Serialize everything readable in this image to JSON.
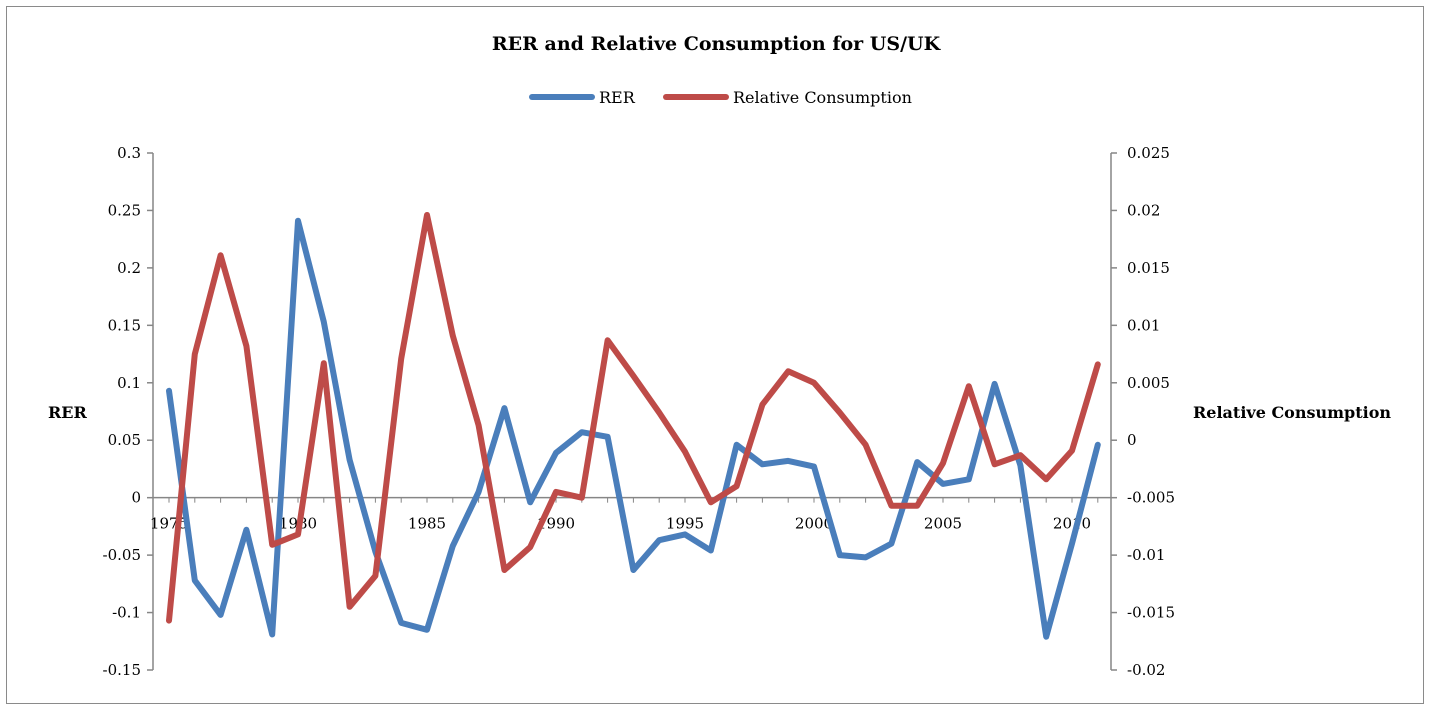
{
  "chart_data": {
    "type": "line",
    "title": "RER and Relative Consumption for US/UK",
    "ylabel_left": "RER",
    "ylabel_right": "Relative Consumption",
    "xlabel": "",
    "legend_position": "top",
    "grid": false,
    "x": [
      1975,
      1976,
      1977,
      1978,
      1979,
      1980,
      1981,
      1982,
      1983,
      1984,
      1985,
      1986,
      1987,
      1988,
      1989,
      1990,
      1991,
      1992,
      1993,
      1994,
      1995,
      1996,
      1997,
      1998,
      1999,
      2000,
      2001,
      2002,
      2003,
      2004,
      2005,
      2006,
      2007,
      2008,
      2009,
      2010,
      2011
    ],
    "x_tick_labels": [
      "1975",
      "1980",
      "1985",
      "1990",
      "1995",
      "2000",
      "2005",
      "2010"
    ],
    "ylim_left": [
      -0.15,
      0.3
    ],
    "ylim_right": [
      -0.02,
      0.025
    ],
    "y_ticks_left": [
      "0.3",
      "0.25",
      "0.2",
      "0.15",
      "0.1",
      "0.05",
      "0",
      "-0.05",
      "-0.1",
      "-0.15"
    ],
    "y_ticks_right": [
      "0.025",
      "0.02",
      "0.015",
      "0.01",
      "0.005",
      "0",
      "-0.005",
      "-0.01",
      "-0.015",
      "-0.02"
    ],
    "series": [
      {
        "name": "RER",
        "axis": "left",
        "color": "#4a7ebb",
        "values": [
          0.093,
          -0.072,
          -0.102,
          -0.028,
          -0.119,
          0.241,
          0.153,
          0.033,
          -0.047,
          -0.109,
          -0.115,
          -0.042,
          0.005,
          0.078,
          -0.004,
          0.039,
          0.057,
          0.053,
          -0.063,
          -0.037,
          -0.032,
          -0.046,
          0.046,
          0.029,
          0.032,
          0.027,
          -0.05,
          -0.052,
          -0.04,
          0.031,
          0.012,
          0.016,
          0.099,
          0.028,
          -0.121,
          -0.04,
          0.046
        ]
      },
      {
        "name": "Relative Consumption",
        "axis": "right",
        "color": "#be4b48",
        "values": [
          -0.0157,
          0.0075,
          0.0161,
          0.0082,
          -0.0091,
          -0.0082,
          0.0067,
          -0.0145,
          -0.0118,
          0.0071,
          0.0196,
          0.0091,
          0.0013,
          -0.0113,
          -0.0093,
          -0.0045,
          -0.005,
          0.0087,
          0.0056,
          0.0024,
          -0.001,
          -0.0054,
          -0.004,
          0.0031,
          0.006,
          0.005,
          0.0024,
          -0.0004,
          -0.0057,
          -0.0057,
          -0.002,
          0.0047,
          -0.0021,
          -0.0013,
          -0.0034,
          -0.0009,
          0.0066
        ]
      }
    ]
  }
}
